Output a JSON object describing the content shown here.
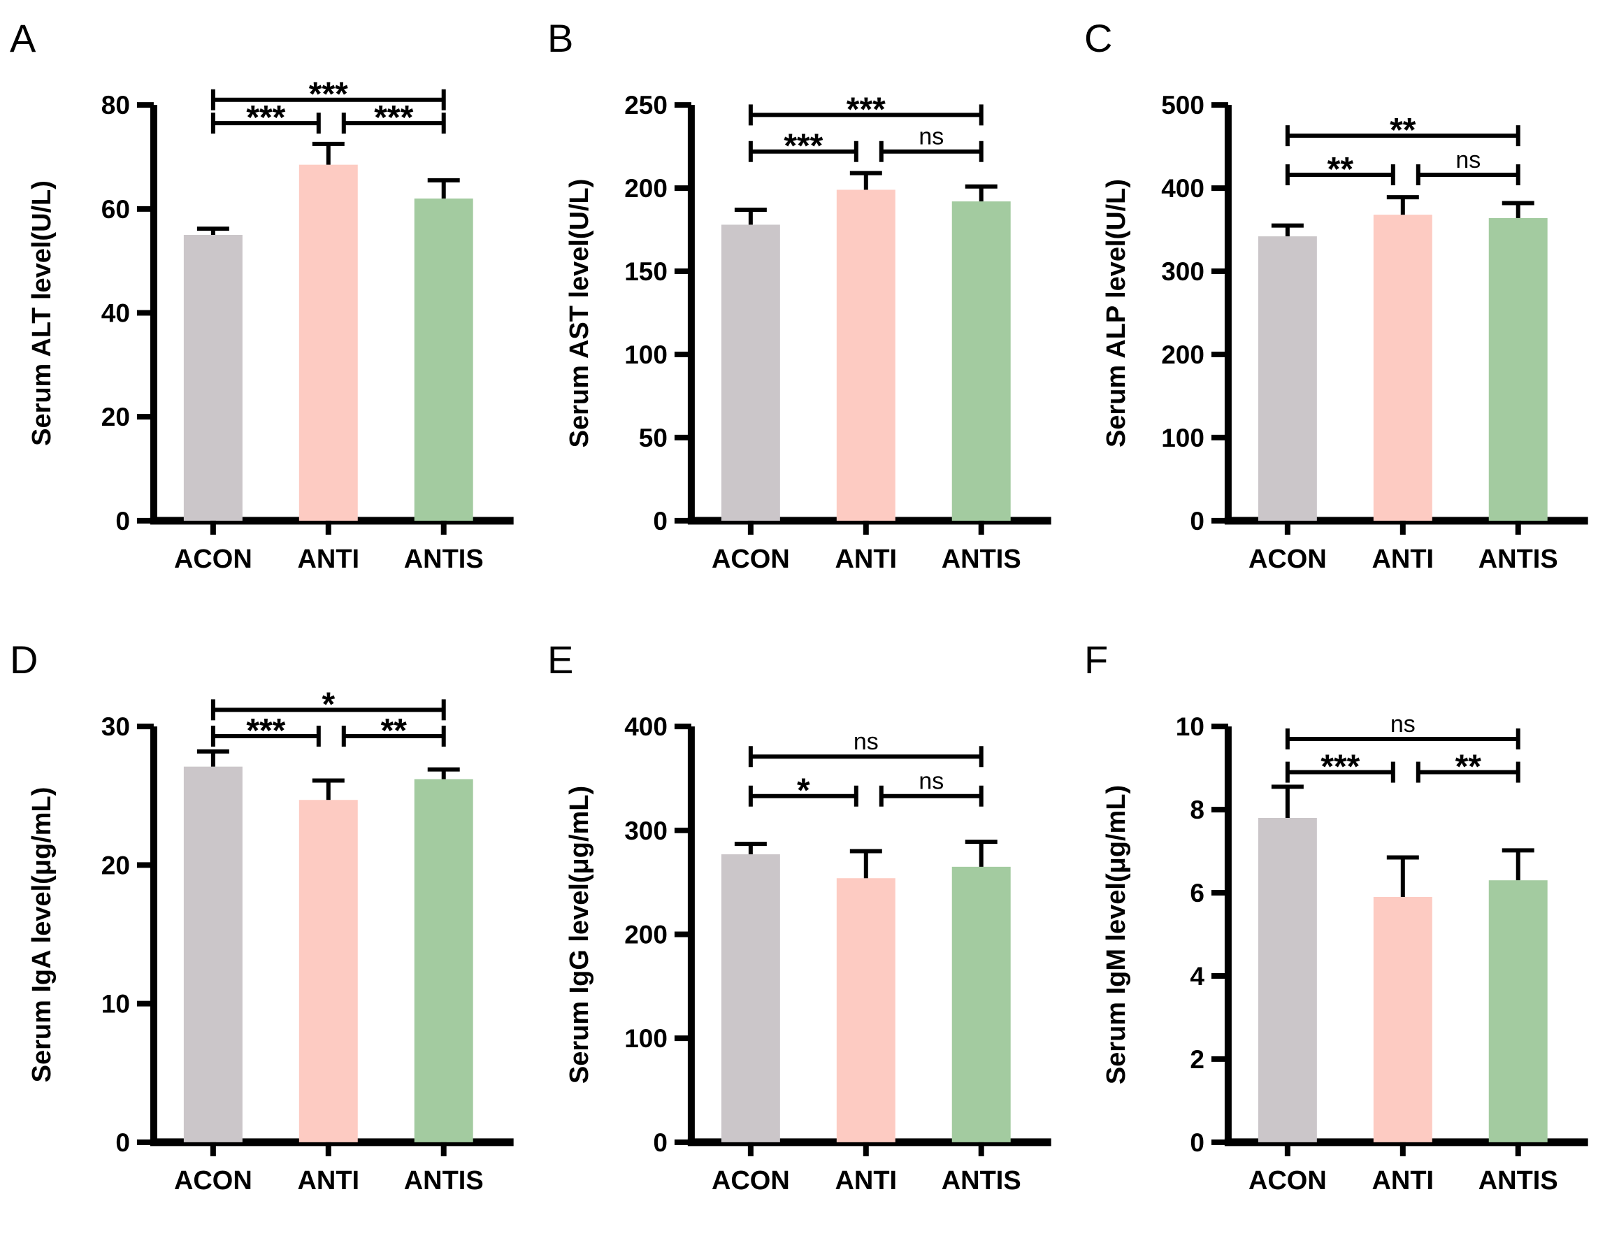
{
  "figure": {
    "background": "#ffffff",
    "text_color": "#000000",
    "bar_colors": [
      "#cbc6c9",
      "#fdcbc2",
      "#a3cba0"
    ],
    "categories": [
      "ACON",
      "ANTI",
      "ANTIS"
    ]
  },
  "chart_data": [
    {
      "type": "bar",
      "panel": "A",
      "ylabel": "Serum ALT level(U/L)",
      "categories": [
        "ACON",
        "ANTI",
        "ANTIS"
      ],
      "values": [
        55,
        68.5,
        62
      ],
      "errors": [
        1.2,
        4,
        3.5
      ],
      "ylim": [
        0,
        80
      ],
      "yticks": [
        0,
        20,
        40,
        60,
        80
      ],
      "legend": "none",
      "grid": "off",
      "significance": [
        {
          "from": 0,
          "to": 2,
          "label": "***",
          "y": 81
        },
        {
          "from": 0,
          "to": 1,
          "label": "***",
          "y": 76.5
        },
        {
          "from": 1,
          "to": 2,
          "label": "***",
          "y": 76.5
        }
      ]
    },
    {
      "type": "bar",
      "panel": "B",
      "ylabel": "Serum AST level(U/L)",
      "categories": [
        "ACON",
        "ANTI",
        "ANTIS"
      ],
      "values": [
        178,
        199,
        192
      ],
      "errors": [
        9,
        10,
        9
      ],
      "ylim": [
        0,
        250
      ],
      "yticks": [
        0,
        50,
        100,
        150,
        200,
        250
      ],
      "legend": "none",
      "grid": "off",
      "significance": [
        {
          "from": 0,
          "to": 2,
          "label": "***",
          "y": 244
        },
        {
          "from": 0,
          "to": 1,
          "label": "***",
          "y": 222
        },
        {
          "from": 1,
          "to": 2,
          "label": "ns",
          "y": 222
        }
      ]
    },
    {
      "type": "bar",
      "panel": "C",
      "ylabel": "Serum ALP level(U/L)",
      "categories": [
        "ACON",
        "ANTI",
        "ANTIS"
      ],
      "values": [
        342,
        368,
        364
      ],
      "errors": [
        13,
        21,
        18
      ],
      "ylim": [
        0,
        500
      ],
      "yticks": [
        0,
        100,
        200,
        300,
        400,
        500
      ],
      "legend": "none",
      "grid": "off",
      "significance": [
        {
          "from": 0,
          "to": 2,
          "label": "**",
          "y": 463
        },
        {
          "from": 0,
          "to": 1,
          "label": "**",
          "y": 416
        },
        {
          "from": 1,
          "to": 2,
          "label": "ns",
          "y": 416
        }
      ]
    },
    {
      "type": "bar",
      "panel": "D",
      "ylabel": "Serum IgA level(μg/mL)",
      "categories": [
        "ACON",
        "ANTI",
        "ANTIS"
      ],
      "values": [
        27.1,
        24.7,
        26.2
      ],
      "errors": [
        1.1,
        1.4,
        0.7
      ],
      "ylim": [
        0,
        30
      ],
      "yticks": [
        0,
        10,
        20,
        30
      ],
      "legend": "none",
      "grid": "off",
      "significance": [
        {
          "from": 0,
          "to": 2,
          "label": "*",
          "y": 31.2
        },
        {
          "from": 0,
          "to": 1,
          "label": "***",
          "y": 29.3
        },
        {
          "from": 1,
          "to": 2,
          "label": "**",
          "y": 29.3
        }
      ]
    },
    {
      "type": "bar",
      "panel": "E",
      "ylabel": "Serum IgG level(μg/mL)",
      "categories": [
        "ACON",
        "ANTI",
        "ANTIS"
      ],
      "values": [
        277,
        254,
        265
      ],
      "errors": [
        10,
        26,
        24
      ],
      "ylim": [
        0,
        400
      ],
      "yticks": [
        0,
        100,
        200,
        300,
        400
      ],
      "legend": "none",
      "grid": "off",
      "significance": [
        {
          "from": 0,
          "to": 2,
          "label": "ns",
          "y": 371
        },
        {
          "from": 0,
          "to": 1,
          "label": "*",
          "y": 333
        },
        {
          "from": 1,
          "to": 2,
          "label": "ns",
          "y": 333
        }
      ]
    },
    {
      "type": "bar",
      "panel": "F",
      "ylabel": "Serum IgM level(μg/mL)",
      "categories": [
        "ACON",
        "ANTI",
        "ANTIS"
      ],
      "values": [
        7.8,
        5.9,
        6.3
      ],
      "errors": [
        0.75,
        0.95,
        0.72
      ],
      "ylim": [
        0,
        10
      ],
      "yticks": [
        0,
        2,
        4,
        6,
        8,
        10
      ],
      "legend": "none",
      "grid": "off",
      "significance": [
        {
          "from": 0,
          "to": 2,
          "label": "ns",
          "y": 9.7
        },
        {
          "from": 0,
          "to": 1,
          "label": "***",
          "y": 8.9
        },
        {
          "from": 1,
          "to": 2,
          "label": "**",
          "y": 8.9
        }
      ]
    }
  ]
}
